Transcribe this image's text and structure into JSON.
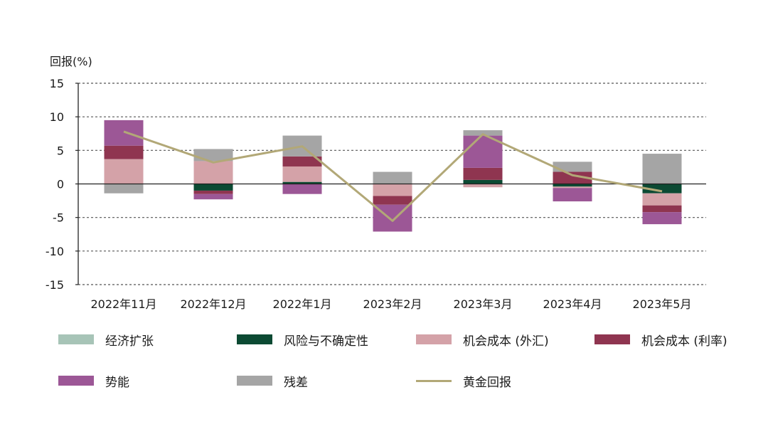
{
  "chart_data": {
    "type": "bar",
    "stacked": true,
    "ylabel": "回报(%)",
    "ylim": [
      -15,
      15
    ],
    "yticks": [
      15,
      10,
      5,
      0,
      -5,
      -10,
      -15
    ],
    "grid": "horizontal-dotted",
    "legend_position": "bottom",
    "categories": [
      "2022年11月",
      "2022年12月",
      "2022年1月",
      "2023年2月",
      "2023年3月",
      "2023年4月",
      "2023年5月"
    ],
    "series": [
      {
        "name": "经济扩张",
        "color": "#a7c4b7",
        "values": [
          0,
          0,
          0,
          0,
          0,
          0,
          0
        ]
      },
      {
        "name": "风险与不确定性",
        "color": "#0c4a33",
        "values": [
          0,
          -1.0,
          0.3,
          0,
          0.6,
          -0.4,
          -1.4
        ]
      },
      {
        "name": "机会成本 (外汇)",
        "color": "#d4a2a8",
        "values": [
          3.7,
          3.4,
          2.3,
          -1.8,
          -0.5,
          -0.2,
          -1.8
        ]
      },
      {
        "name": "机会成本 (利率)",
        "color": "#8f3550",
        "values": [
          2.0,
          -0.5,
          1.5,
          -1.3,
          1.8,
          1.8,
          -1.0
        ]
      },
      {
        "name": "势能",
        "color": "#9c5796",
        "values": [
          3.8,
          -0.8,
          -1.5,
          -4.0,
          4.8,
          -2.0,
          -1.8
        ]
      },
      {
        "name": "残差",
        "color": "#a5a5a5",
        "values": [
          -1.4,
          1.8,
          3.1,
          1.8,
          0.8,
          1.5,
          4.5
        ]
      }
    ],
    "line": {
      "name": "黄金回报",
      "color": "#b2a877",
      "values": [
        7.8,
        3.2,
        5.6,
        -5.5,
        7.4,
        1.3,
        -1.1
      ]
    }
  },
  "legend": {
    "items": [
      {
        "label": "经济扩张",
        "color": "#a7c4b7",
        "kind": "box"
      },
      {
        "label": "风险与不确定性",
        "color": "#0c4a33",
        "kind": "box"
      },
      {
        "label": "机会成本 (外汇)",
        "color": "#d4a2a8",
        "kind": "box"
      },
      {
        "label": "机会成本 (利率)",
        "color": "#8f3550",
        "kind": "box"
      },
      {
        "label": "势能",
        "color": "#9c5796",
        "kind": "box"
      },
      {
        "label": "残差",
        "color": "#a5a5a5",
        "kind": "box"
      },
      {
        "label": "黄金回报",
        "color": "#b2a877",
        "kind": "line"
      }
    ]
  }
}
